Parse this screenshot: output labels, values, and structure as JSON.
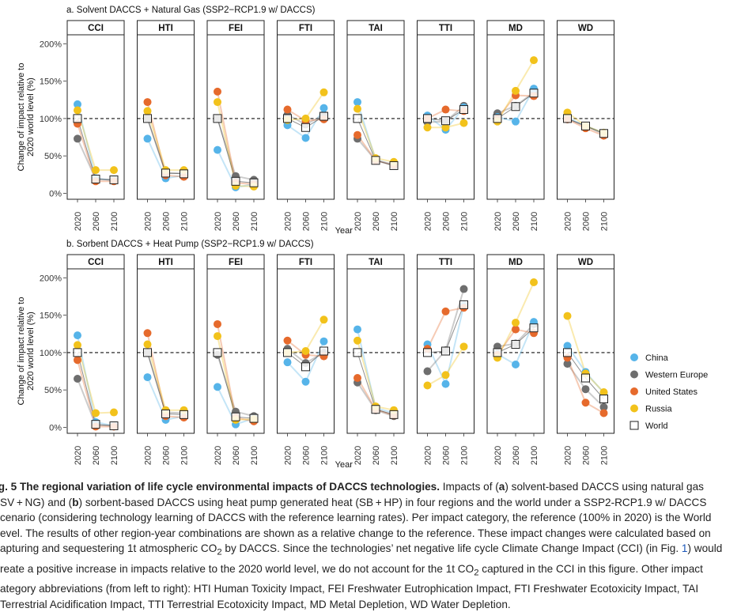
{
  "figure": {
    "xlabel": "Year",
    "ylabel": "Change of impact relative to 2020 world level (%)",
    "ytick_labels": [
      "0%",
      "50%",
      "100%",
      "150%",
      "200%"
    ],
    "yticks": [
      0,
      50,
      100,
      150,
      200
    ],
    "ylim": [
      -8,
      212
    ],
    "years": [
      "2020",
      "2060",
      "2100"
    ],
    "categories": [
      "CCI",
      "HTI",
      "FEI",
      "FTI",
      "TAI",
      "TTI",
      "MD",
      "WD"
    ],
    "reference_line": 100,
    "legend": {
      "position": "right",
      "entries": [
        {
          "label": "China",
          "color": "#56b4e9",
          "marker": "circle"
        },
        {
          "label": "Western Europe",
          "color": "#6e6e6e",
          "marker": "circle"
        },
        {
          "label": "United States",
          "color": "#e66a2c",
          "marker": "circle"
        },
        {
          "label": "Russia",
          "color": "#f2c21b",
          "marker": "circle"
        },
        {
          "label": "World",
          "color": "#000000",
          "marker": "open-square"
        }
      ]
    }
  },
  "chart_data": [
    {
      "type": "line",
      "title": "a. Solvent DACCS + Natural Gas (SSP2−RCP1.9 w/ DACCS)",
      "x": [
        "2020",
        "2060",
        "2100"
      ],
      "panels": [
        {
          "name": "CCI",
          "series": [
            {
              "name": "China",
              "values": [
                119,
                20,
                17
              ]
            },
            {
              "name": "Western Europe",
              "values": [
                73,
                19,
                18
              ]
            },
            {
              "name": "United States",
              "values": [
                93,
                16,
                16
              ]
            },
            {
              "name": "Russia",
              "values": [
                111,
                31,
                31
              ]
            },
            {
              "name": "World",
              "values": [
                100,
                19,
                18
              ]
            }
          ]
        },
        {
          "name": "HTI",
          "series": [
            {
              "name": "China",
              "values": [
                73,
                20,
                24
              ]
            },
            {
              "name": "Western Europe",
              "values": [
                100,
                27,
                27
              ]
            },
            {
              "name": "United States",
              "values": [
                122,
                24,
                22
              ]
            },
            {
              "name": "Russia",
              "values": [
                110,
                31,
                31
              ]
            },
            {
              "name": "World",
              "values": [
                100,
                27,
                26
              ]
            }
          ]
        },
        {
          "name": "FEI",
          "series": [
            {
              "name": "China",
              "values": [
                58,
                8,
                12
              ]
            },
            {
              "name": "Western Europe",
              "values": [
                100,
                23,
                18
              ]
            },
            {
              "name": "United States",
              "values": [
                136,
                14,
                12
              ]
            },
            {
              "name": "Russia",
              "values": [
                122,
                10,
                9
              ]
            },
            {
              "name": "World",
              "values": [
                100,
                16,
                14
              ]
            }
          ]
        },
        {
          "name": "FTI",
          "series": [
            {
              "name": "China",
              "values": [
                91,
                74,
                114
              ]
            },
            {
              "name": "Western Europe",
              "values": [
                105,
                92,
                105
              ]
            },
            {
              "name": "United States",
              "values": [
                112,
                97,
                99
              ]
            },
            {
              "name": "Russia",
              "values": [
                98,
                100,
                135
              ]
            },
            {
              "name": "World",
              "values": [
                100,
                88,
                103
              ]
            }
          ]
        },
        {
          "name": "TAI",
          "series": [
            {
              "name": "China",
              "values": [
                122,
                45,
                38
              ]
            },
            {
              "name": "Western Europe",
              "values": [
                73,
                44,
                37
              ]
            },
            {
              "name": "United States",
              "values": [
                78,
                44,
                38
              ]
            },
            {
              "name": "Russia",
              "values": [
                113,
                47,
                42
              ]
            },
            {
              "name": "World",
              "values": [
                100,
                44,
                37
              ]
            }
          ]
        },
        {
          "name": "TTI",
          "series": [
            {
              "name": "China",
              "values": [
                104,
                85,
                115
              ]
            },
            {
              "name": "Western Europe",
              "values": [
                95,
                96,
                117
              ]
            },
            {
              "name": "United States",
              "values": [
                100,
                112,
                110
              ]
            },
            {
              "name": "Russia",
              "values": [
                88,
                88,
                94
              ]
            },
            {
              "name": "World",
              "values": [
                100,
                97,
                112
              ]
            }
          ]
        },
        {
          "name": "MD",
          "series": [
            {
              "name": "China",
              "values": [
                102,
                96,
                140
              ]
            },
            {
              "name": "Western Europe",
              "values": [
                107,
                117,
                135
              ]
            },
            {
              "name": "United States",
              "values": [
                100,
                131,
                130
              ]
            },
            {
              "name": "Russia",
              "values": [
                96,
                137,
                178
              ]
            },
            {
              "name": "World",
              "values": [
                100,
                116,
                134
              ]
            }
          ]
        },
        {
          "name": "WD",
          "series": [
            {
              "name": "China",
              "values": [
                101,
                90,
                81
              ]
            },
            {
              "name": "Western Europe",
              "values": [
                99,
                90,
                79
              ]
            },
            {
              "name": "United States",
              "values": [
                99,
                87,
                77
              ]
            },
            {
              "name": "Russia",
              "values": [
                108,
                90,
                81
              ]
            },
            {
              "name": "World",
              "values": [
                100,
                90,
                80
              ]
            }
          ]
        }
      ]
    },
    {
      "type": "line",
      "title": "b. Sorbent DACCS + Heat Pump (SSP2−RCP1.9 w/ DACCS)",
      "x": [
        "2020",
        "2060",
        "2100"
      ],
      "panels": [
        {
          "name": "CCI",
          "series": [
            {
              "name": "China",
              "values": [
                123,
                7,
                2
              ]
            },
            {
              "name": "Western Europe",
              "values": [
                65,
                3,
                2
              ]
            },
            {
              "name": "United States",
              "values": [
                90,
                1,
                1
              ]
            },
            {
              "name": "Russia",
              "values": [
                110,
                19,
                20
              ]
            },
            {
              "name": "World",
              "values": [
                100,
                4,
                2
              ]
            }
          ]
        },
        {
          "name": "HTI",
          "series": [
            {
              "name": "China",
              "values": [
                67,
                10,
                15
              ]
            },
            {
              "name": "Western Europe",
              "values": [
                100,
                20,
                19
              ]
            },
            {
              "name": "United States",
              "values": [
                126,
                15,
                13
              ]
            },
            {
              "name": "Russia",
              "values": [
                111,
                23,
                23
              ]
            },
            {
              "name": "World",
              "values": [
                100,
                18,
                17
              ]
            }
          ]
        },
        {
          "name": "FEI",
          "series": [
            {
              "name": "China",
              "values": [
                54,
                4,
                12
              ]
            },
            {
              "name": "Western Europe",
              "values": [
                97,
                21,
                15
              ]
            },
            {
              "name": "United States",
              "values": [
                138,
                13,
                8
              ]
            },
            {
              "name": "Russia",
              "values": [
                122,
                10,
                11
              ]
            },
            {
              "name": "World",
              "values": [
                100,
                14,
                12
              ]
            }
          ]
        },
        {
          "name": "FTI",
          "series": [
            {
              "name": "China",
              "values": [
                87,
                61,
                115
              ]
            },
            {
              "name": "Western Europe",
              "values": [
                105,
                86,
                100
              ]
            },
            {
              "name": "United States",
              "values": [
                116,
                97,
                95
              ]
            },
            {
              "name": "Russia",
              "values": [
                100,
                102,
                144
              ]
            },
            {
              "name": "World",
              "values": [
                100,
                81,
                102
              ]
            }
          ]
        },
        {
          "name": "TAI",
          "series": [
            {
              "name": "China",
              "values": [
                131,
                26,
                19
              ]
            },
            {
              "name": "Western Europe",
              "values": [
                60,
                23,
                15
              ]
            },
            {
              "name": "United States",
              "values": [
                66,
                24,
                16
              ]
            },
            {
              "name": "Russia",
              "values": [
                116,
                28,
                23
              ]
            },
            {
              "name": "World",
              "values": [
                100,
                24,
                17
              ]
            }
          ]
        },
        {
          "name": "TTI",
          "series": [
            {
              "name": "China",
              "values": [
                111,
                58,
                163
              ]
            },
            {
              "name": "Western Europe",
              "values": [
                75,
                103,
                185
              ]
            },
            {
              "name": "United States",
              "values": [
                105,
                155,
                160
              ]
            },
            {
              "name": "Russia",
              "values": [
                56,
                70,
                108
              ]
            },
            {
              "name": "World",
              "values": [
                100,
                102,
                164
              ]
            }
          ]
        },
        {
          "name": "MD",
          "series": [
            {
              "name": "China",
              "values": [
                98,
                84,
                141
              ]
            },
            {
              "name": "Western Europe",
              "values": [
                108,
                112,
                138
              ]
            },
            {
              "name": "United States",
              "values": [
                97,
                131,
                126
              ]
            },
            {
              "name": "Russia",
              "values": [
                93,
                140,
                194
              ]
            },
            {
              "name": "World",
              "values": [
                100,
                111,
                133
              ]
            }
          ]
        },
        {
          "name": "WD",
          "series": [
            {
              "name": "China",
              "values": [
                109,
                74,
                46
              ]
            },
            {
              "name": "Western Europe",
              "values": [
                85,
                51,
                27
              ]
            },
            {
              "name": "United States",
              "values": [
                93,
                33,
                19
              ]
            },
            {
              "name": "Russia",
              "values": [
                149,
                72,
                47
              ]
            },
            {
              "name": "World",
              "values": [
                100,
                66,
                38
              ]
            }
          ]
        }
      ]
    }
  ],
  "caption": {
    "label": "ig. 5 The regional variation of life cycle environmental impacts of DACCS technologies.",
    "p1": " Impacts of (",
    "a": "a",
    "p2": ") solvent-based DACCS using natural gas",
    "line2a": "SV + NG) and (",
    "b": "b",
    "line2b": ") sorbent-based DACCS using heat pump generated heat (SB + HP) in four regions and the world under a SSP2-RCP1.9 w/ DACCS",
    "line3": "cenario (considering technology learning of DACCS with the reference learning rates). Per impact category, the reference (100% in 2020) is the World",
    "line4": "evel. The results of other region-year combinations are shown as a relative change to the reference. These impact changes were calculated based on",
    "line5a": "apturing and sequestering 1t atmospheric CO",
    "line5sub": "2",
    "line5b": " by DACCS. Since the technologies’ net negative life cycle Climate Change Impact (CCI) (in Fig. ",
    "line5ref": "1",
    "line5c": ") would",
    "line6a": "reate a positive increase in impacts relative to the 2020 world level, we do not account for the 1t CO",
    "line6sub": "2",
    "line6b": " captured in the CCI in this figure. Other impact",
    "line7": "ategory abbreviations (from left to right): HTI Human Toxicity Impact, FEI Freshwater Eutrophication Impact, FTI Freshwater Ecotoxicity Impact, TAI",
    "line8": "Terrestrial Acidification Impact, TTI Terrestrial Ecotoxicity Impact, MD Metal Depletion, WD Water Depletion."
  }
}
